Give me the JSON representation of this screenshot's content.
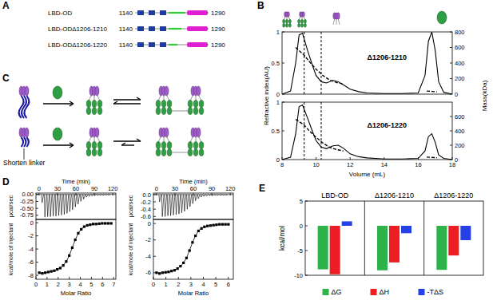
{
  "panel_labels": [
    "A",
    "B",
    "C",
    "D",
    "E"
  ],
  "constructs": [
    {
      "name": "LBD-OD",
      "start": 1140,
      "end": 1290
    },
    {
      "name": "LBD-ODΔ1206-1210",
      "start": 1140,
      "end": 1290
    },
    {
      "name": "LBD-ODΔ1206-1220",
      "start": 1140,
      "end": 1290
    }
  ],
  "schematic": {
    "label": "Shorten linker"
  },
  "chart_data": [
    {
      "type": "line",
      "annotation": "Δ1206-1210",
      "y_label": "Refractive index(AU)",
      "y2_label": "Mass(kDa)",
      "xlim": [
        8,
        18
      ],
      "ylim": [
        0,
        1
      ],
      "yticks": [
        0,
        0.5,
        1
      ],
      "y2lim": [
        0,
        800
      ],
      "y2ticks": [
        0,
        200,
        400,
        600,
        800
      ],
      "reference_lines": [
        9.3,
        10.3
      ],
      "series": [
        {
          "color": "#000000",
          "line_style": "solid",
          "x": [
            8,
            8.5,
            8.8,
            9.0,
            9.2,
            9.5,
            9.8,
            10.0,
            10.3,
            10.6,
            11.0,
            11.3,
            11.6,
            12.0,
            12.5,
            13,
            14,
            15,
            16,
            16.4,
            16.6,
            16.8,
            17.0,
            17.2,
            17.5,
            18
          ],
          "values": [
            0,
            0.05,
            0.5,
            0.95,
            0.98,
            0.7,
            0.45,
            0.3,
            0.2,
            0.18,
            0.22,
            0.2,
            0.15,
            0.08,
            0.04,
            0.02,
            0.01,
            0.01,
            0.02,
            0.3,
            0.85,
            1.0,
            0.7,
            0.2,
            0.03,
            0
          ]
        },
        {
          "color": "#000000",
          "line_style": "dashed",
          "axis": "y2",
          "x": [
            8.8,
            9.0,
            9.3,
            9.6,
            10.0,
            10.4,
            10.8,
            11.2,
            11.6,
            14,
            16.5,
            16.8,
            17.1
          ],
          "values": [
            600,
            560,
            500,
            420,
            320,
            240,
            180,
            150,
            130,
            null,
            40,
            35,
            30
          ]
        }
      ]
    },
    {
      "type": "line",
      "annotation": "Δ1206-1220",
      "x_label": "Volume (mL)",
      "xlim": [
        8,
        18
      ],
      "xticks": [
        8,
        10,
        12,
        14,
        16,
        18
      ],
      "ylim": [
        0,
        1
      ],
      "yticks": [
        0,
        0.5,
        1
      ],
      "y2lim": [
        0,
        800
      ],
      "y2ticks": [
        0,
        200,
        400,
        600
      ],
      "reference_lines": [
        9.3,
        10.3
      ],
      "series": [
        {
          "color": "#000000",
          "line_style": "solid",
          "x": [
            8,
            8.5,
            8.8,
            9.0,
            9.2,
            9.5,
            9.8,
            10.0,
            10.3,
            10.6,
            11.0,
            11.3,
            11.6,
            12.0,
            12.5,
            13,
            14,
            15,
            16,
            16.4,
            16.6,
            16.8,
            17.0,
            17.2,
            17.5,
            18
          ],
          "values": [
            0,
            0.04,
            0.45,
            0.92,
            0.95,
            0.72,
            0.48,
            0.33,
            0.22,
            0.19,
            0.24,
            0.25,
            0.2,
            0.1,
            0.05,
            0.03,
            0.01,
            0.01,
            0.02,
            0.15,
            0.4,
            0.45,
            0.3,
            0.08,
            0.02,
            0
          ]
        },
        {
          "color": "#000000",
          "line_style": "dashed",
          "axis": "y2",
          "x": [
            8.8,
            9.0,
            9.3,
            9.6,
            10.0,
            10.4,
            10.8,
            11.2,
            11.6,
            14,
            16.5,
            16.8,
            17.1
          ],
          "values": [
            560,
            530,
            480,
            400,
            310,
            230,
            170,
            140,
            120,
            null,
            35,
            30,
            25
          ]
        }
      ]
    },
    {
      "type": "spike",
      "x_label": "Time (min)",
      "y_label": "µcal/sec",
      "xlim": [
        -5,
        125
      ],
      "xticks": [
        0,
        30,
        60,
        90,
        120
      ],
      "ylim": [
        -0.9,
        0.05
      ],
      "yticks": [
        {
          "value": 0,
          "label": "0.00"
        },
        -0.25,
        {
          "value": -0.5,
          "label": "-0.50"
        },
        -0.75
      ],
      "series": [
        {
          "color": "#000000",
          "x": [
            5,
            9.5,
            14,
            18.5,
            23,
            27.5,
            32,
            36.5,
            41,
            45.5,
            50,
            54.5,
            59,
            63.5,
            68,
            72.5,
            77,
            81.5,
            86,
            90.5,
            95,
            99.5,
            104,
            108.5,
            113
          ],
          "values": [
            -0.3,
            -0.82,
            -0.8,
            -0.8,
            -0.78,
            -0.78,
            -0.76,
            -0.74,
            -0.72,
            -0.68,
            -0.62,
            -0.55,
            -0.45,
            -0.35,
            -0.25,
            -0.17,
            -0.1,
            -0.07,
            -0.05,
            -0.04,
            -0.03,
            -0.03,
            -0.03,
            -0.02,
            -0.02
          ]
        }
      ]
    },
    {
      "type": "scatter",
      "x_label": "Molar Ratio",
      "y_label": "kcal/mole of injectant",
      "xlim": [
        0,
        7.2
      ],
      "xticks": [
        0,
        1,
        2,
        3,
        4,
        5,
        6,
        7
      ],
      "ylim": [
        -8.6,
        0.5
      ],
      "yticks": [
        0,
        -2,
        -4,
        -6,
        -8
      ],
      "series": [
        {
          "color": "#000000",
          "marker": "square",
          "line_style": "solid",
          "x": [
            0.3,
            0.57,
            0.84,
            1.11,
            1.38,
            1.65,
            1.92,
            2.19,
            2.46,
            2.73,
            3.0,
            3.27,
            3.54,
            3.81,
            4.08,
            4.35,
            4.62,
            4.89,
            5.16,
            5.43,
            5.7,
            5.97,
            6.24,
            6.51,
            6.78
          ],
          "values": [
            -7.6,
            -7.7,
            -7.6,
            -7.5,
            -7.4,
            -7.3,
            -7.1,
            -6.9,
            -6.5,
            -5.9,
            -5.0,
            -3.8,
            -2.6,
            -1.6,
            -1.0,
            -0.6,
            -0.4,
            -0.3,
            -0.2,
            -0.2,
            -0.15,
            -0.1,
            -0.1,
            -0.1,
            -0.1
          ]
        }
      ]
    },
    {
      "type": "spike",
      "x_label": "Time (min)",
      "y_label": "µcal/sec",
      "xlim": [
        -5,
        125
      ],
      "xticks": [
        0,
        30,
        60,
        90,
        120
      ],
      "ylim": [
        -0.68,
        0.04
      ],
      "yticks": [
        {
          "value": 0,
          "label": "0.0"
        },
        -0.2,
        -0.4,
        -0.6
      ],
      "series": [
        {
          "color": "#000000",
          "x": [
            5,
            9.5,
            14,
            18.5,
            23,
            27.5,
            32,
            36.5,
            41,
            45.5,
            50,
            54.5,
            59,
            63.5,
            68,
            72.5,
            77,
            81.5,
            86,
            90.5,
            95,
            99.5,
            104,
            108.5,
            113
          ],
          "values": [
            -0.2,
            -0.6,
            -0.6,
            -0.58,
            -0.58,
            -0.56,
            -0.55,
            -0.53,
            -0.5,
            -0.46,
            -0.4,
            -0.33,
            -0.25,
            -0.17,
            -0.11,
            -0.07,
            -0.05,
            -0.04,
            -0.03,
            -0.03,
            -0.02,
            -0.02,
            -0.02,
            -0.02,
            -0.02
          ]
        }
      ]
    },
    {
      "type": "scatter",
      "x_label": "Molar Ratio",
      "y_label": "kcal/mole of injectant",
      "xlim": [
        0,
        6.4
      ],
      "xticks": [
        0,
        1,
        2,
        3,
        4,
        5,
        6
      ],
      "ylim": [
        -6.8,
        0.5
      ],
      "yticks": [
        0,
        -2,
        -4,
        -6
      ],
      "series": [
        {
          "color": "#000000",
          "marker": "square",
          "line_style": "solid",
          "x": [
            0.25,
            0.49,
            0.73,
            0.97,
            1.21,
            1.45,
            1.69,
            1.93,
            2.17,
            2.41,
            2.65,
            2.89,
            3.13,
            3.37,
            3.61,
            3.85,
            4.09,
            4.33,
            4.57,
            4.81,
            5.05,
            5.29,
            5.53,
            5.77,
            6.01
          ],
          "values": [
            -6.0,
            -6.1,
            -6.0,
            -5.95,
            -5.9,
            -5.8,
            -5.7,
            -5.5,
            -5.2,
            -4.8,
            -4.2,
            -3.3,
            -2.3,
            -1.5,
            -0.9,
            -0.6,
            -0.4,
            -0.3,
            -0.25,
            -0.2,
            -0.15,
            -0.1,
            -0.1,
            -0.1,
            -0.1
          ]
        }
      ]
    },
    {
      "type": "bar",
      "y_label": "kcal/mol",
      "categories": [
        "LBD-OD",
        "Δ1206-1210",
        "Δ1206-1220"
      ],
      "ylim": [
        -10,
        5
      ],
      "yticks": [
        -10,
        -5,
        0,
        5
      ],
      "legend": "bottom",
      "series": [
        {
          "name": "ΔG",
          "color": "#2db34a",
          "values": [
            -8.8,
            -9.0,
            -8.9
          ]
        },
        {
          "name": "ΔH",
          "color": "#ee1d23",
          "values": [
            -9.8,
            -7.4,
            -6.0
          ]
        },
        {
          "name": "-TΔS",
          "color": "#2440e6",
          "values": [
            0.9,
            -1.5,
            -2.9
          ]
        }
      ]
    }
  ]
}
